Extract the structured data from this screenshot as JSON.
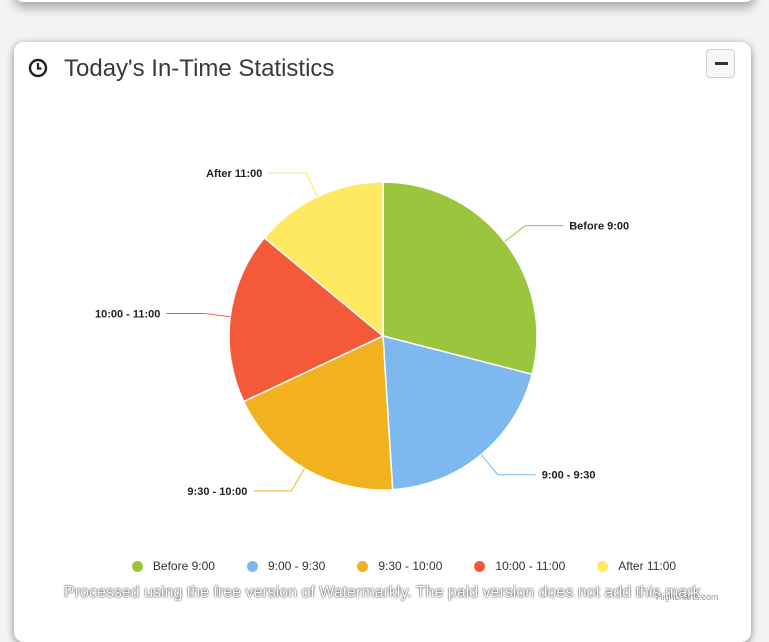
{
  "card": {
    "title": "Today's In-Time Statistics",
    "header_icon": "clock-icon",
    "collapse_icon": "minus-icon"
  },
  "chart_data": {
    "type": "pie",
    "title": "",
    "slices": [
      {
        "label": "Before 9:00",
        "value": 29,
        "color": "#9BC53D"
      },
      {
        "label": "9:00 - 9:30",
        "value": 20,
        "color": "#7DB9EF"
      },
      {
        "label": "9:30 - 10:00",
        "value": 19,
        "color": "#F2B220"
      },
      {
        "label": "10:00 - 11:00",
        "value": 18,
        "color": "#F45A3A"
      },
      {
        "label": "After 11:00",
        "value": 14,
        "color": "#FFE960"
      }
    ],
    "legend_position": "bottom"
  },
  "credit": "Highcharts.com",
  "watermark": "Processed using the free version of Watermarkly. The paid version does not add this mark."
}
